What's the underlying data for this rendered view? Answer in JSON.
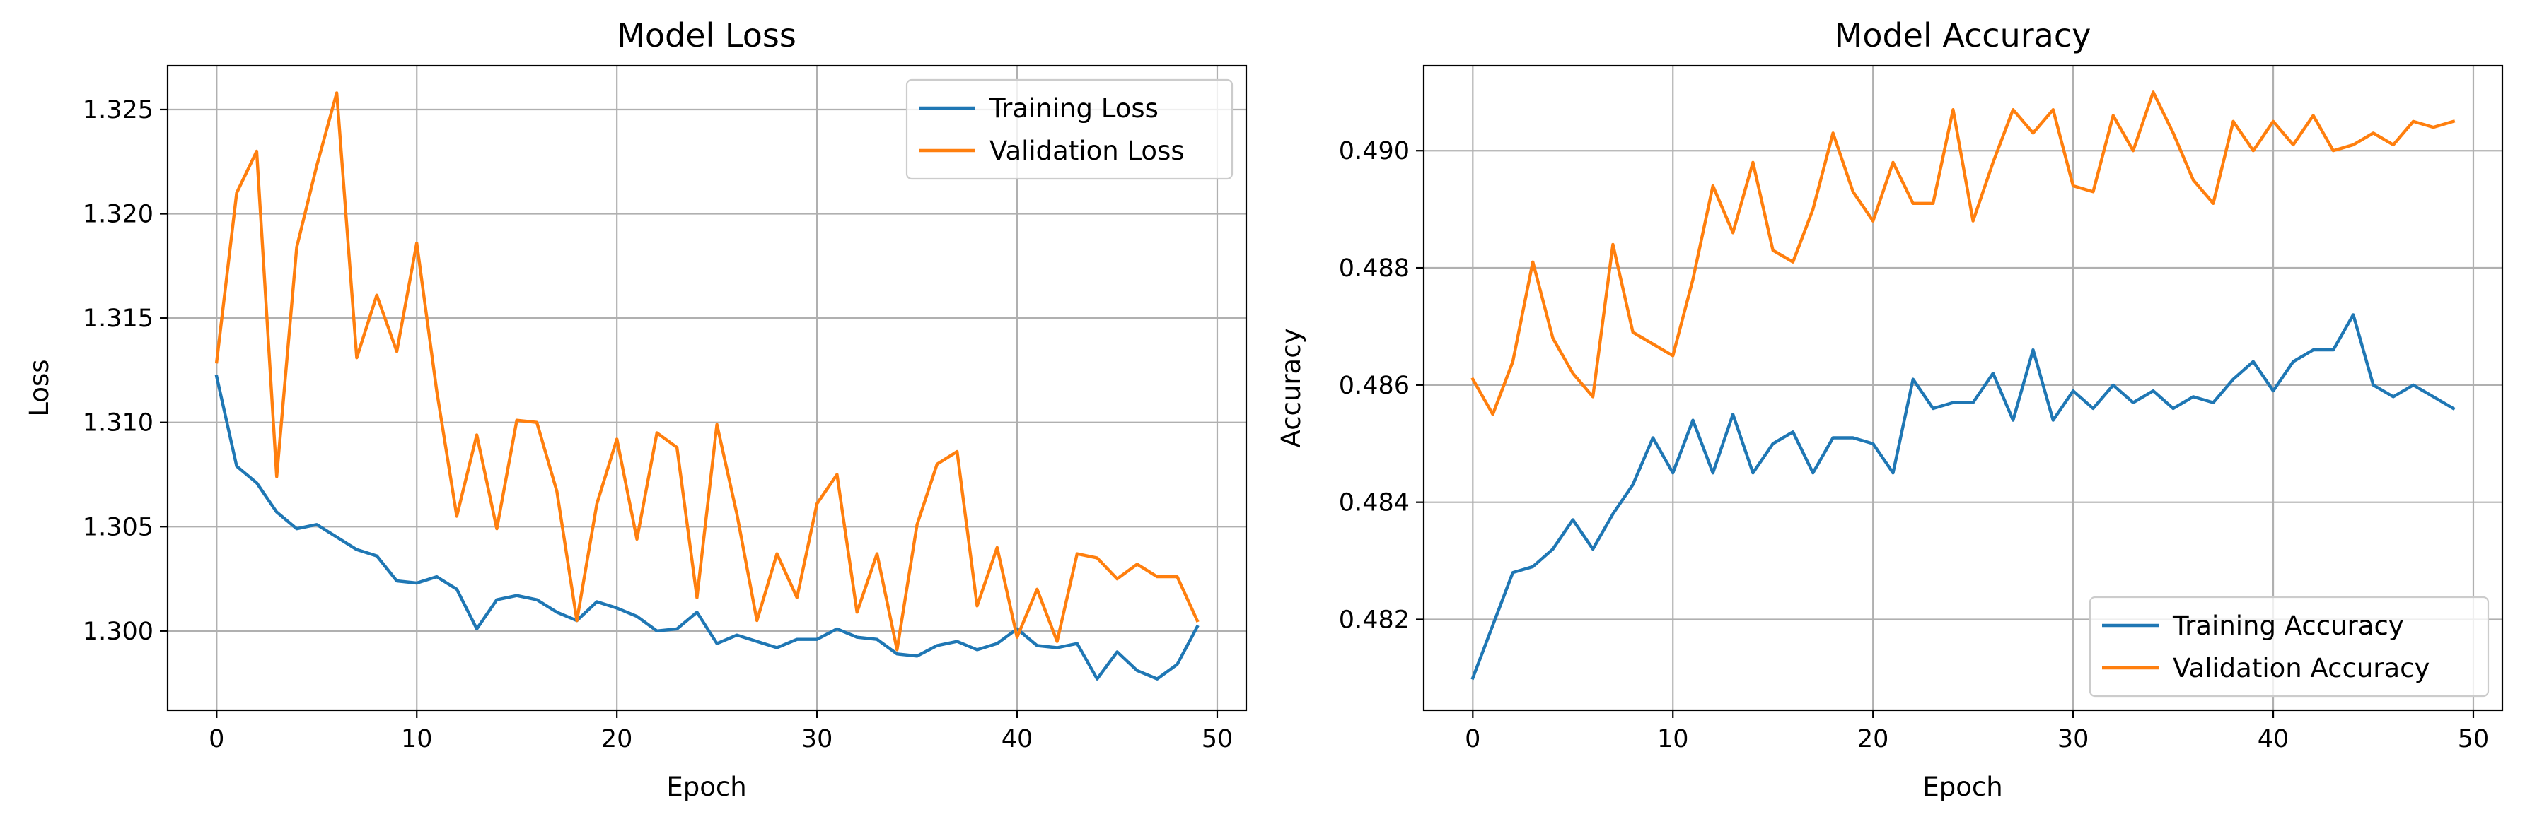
{
  "colors": {
    "training": "#1f77b4",
    "validation": "#ff7f0e"
  },
  "chart_data": [
    {
      "type": "line",
      "title": "Model Loss",
      "xlabel": "Epoch",
      "ylabel": "Loss",
      "xlim": [
        -2.45,
        51.45
      ],
      "ylim": [
        1.2962,
        1.3271
      ],
      "xticks": [
        0,
        10,
        20,
        30,
        40,
        50
      ],
      "xtick_labels": [
        "0",
        "10",
        "20",
        "30",
        "40",
        "50"
      ],
      "yticks": [
        1.3,
        1.305,
        1.31,
        1.315,
        1.32,
        1.325
      ],
      "ytick_labels": [
        "1.300",
        "1.305",
        "1.310",
        "1.315",
        "1.320",
        "1.325"
      ],
      "grid": true,
      "legend_position": "top-right",
      "x": [
        0,
        1,
        2,
        3,
        4,
        5,
        6,
        7,
        8,
        9,
        10,
        11,
        12,
        13,
        14,
        15,
        16,
        17,
        18,
        19,
        20,
        21,
        22,
        23,
        24,
        25,
        26,
        27,
        28,
        29,
        30,
        31,
        32,
        33,
        34,
        35,
        36,
        37,
        38,
        39,
        40,
        41,
        42,
        43,
        44,
        45,
        46,
        47,
        48,
        49
      ],
      "series": [
        {
          "name": "Training Loss",
          "color": "#1f77b4",
          "values": [
            1.3122,
            1.3079,
            1.3071,
            1.3057,
            1.3049,
            1.3051,
            1.3045,
            1.3039,
            1.3036,
            1.3024,
            1.3023,
            1.3026,
            1.302,
            1.3001,
            1.3015,
            1.3017,
            1.3015,
            1.3009,
            1.3005,
            1.3014,
            1.3011,
            1.3007,
            1.3,
            1.3001,
            1.3009,
            1.2994,
            1.2998,
            1.2995,
            1.2992,
            1.2996,
            1.2996,
            1.3001,
            1.2997,
            1.2996,
            1.2989,
            1.2988,
            1.2993,
            1.2995,
            1.2991,
            1.2994,
            1.3001,
            1.2993,
            1.2992,
            1.2994,
            1.2977,
            1.299,
            1.2981,
            1.2977,
            1.2984,
            1.3002
          ]
        },
        {
          "name": "Validation Loss",
          "color": "#ff7f0e",
          "values": [
            1.3129,
            1.321,
            1.323,
            1.3074,
            1.3184,
            1.3223,
            1.3258,
            1.3131,
            1.3161,
            1.3134,
            1.3186,
            1.3115,
            1.3055,
            1.3094,
            1.3049,
            1.3101,
            1.31,
            1.3067,
            1.3005,
            1.3061,
            1.3092,
            1.3044,
            1.3095,
            1.3088,
            1.3016,
            1.3099,
            1.3056,
            1.3005,
            1.3037,
            1.3016,
            1.3061,
            1.3075,
            1.3009,
            1.3037,
            1.2991,
            1.3051,
            1.308,
            1.3086,
            1.3012,
            1.304,
            1.2997,
            1.302,
            1.2995,
            1.3037,
            1.3035,
            1.3025,
            1.3032,
            1.3026,
            1.3026,
            1.3005
          ]
        }
      ]
    },
    {
      "type": "line",
      "title": "Model Accuracy",
      "xlabel": "Epoch",
      "ylabel": "Accuracy",
      "xlim": [
        -2.45,
        51.45
      ],
      "ylim": [
        0.48045,
        0.49145
      ],
      "xticks": [
        0,
        10,
        20,
        30,
        40,
        50
      ],
      "xtick_labels": [
        "0",
        "10",
        "20",
        "30",
        "40",
        "50"
      ],
      "yticks": [
        0.482,
        0.484,
        0.486,
        0.488,
        0.49
      ],
      "ytick_labels": [
        "0.482",
        "0.484",
        "0.486",
        "0.488",
        "0.490"
      ],
      "grid": true,
      "legend_position": "bottom-right",
      "x": [
        0,
        1,
        2,
        3,
        4,
        5,
        6,
        7,
        8,
        9,
        10,
        11,
        12,
        13,
        14,
        15,
        16,
        17,
        18,
        19,
        20,
        21,
        22,
        23,
        24,
        25,
        26,
        27,
        28,
        29,
        30,
        31,
        32,
        33,
        34,
        35,
        36,
        37,
        38,
        39,
        40,
        41,
        42,
        43,
        44,
        45,
        46,
        47,
        48,
        49
      ],
      "series": [
        {
          "name": "Training Accuracy",
          "color": "#1f77b4",
          "values": [
            0.481,
            0.4819,
            0.4828,
            0.4829,
            0.4832,
            0.4837,
            0.4832,
            0.4838,
            0.4843,
            0.4851,
            0.4845,
            0.4854,
            0.4845,
            0.4855,
            0.4845,
            0.485,
            0.4852,
            0.4845,
            0.4851,
            0.4851,
            0.485,
            0.4845,
            0.4861,
            0.4856,
            0.4857,
            0.4857,
            0.4862,
            0.4854,
            0.4866,
            0.4854,
            0.4859,
            0.4856,
            0.486,
            0.4857,
            0.4859,
            0.4856,
            0.4858,
            0.4857,
            0.4861,
            0.4864,
            0.4859,
            0.4864,
            0.4866,
            0.4866,
            0.4872,
            0.486,
            0.4858,
            0.486,
            0.4858,
            0.4856
          ]
        },
        {
          "name": "Validation Accuracy",
          "color": "#ff7f0e",
          "values": [
            0.4861,
            0.4855,
            0.4864,
            0.4881,
            0.4868,
            0.4862,
            0.4858,
            0.4884,
            0.4869,
            0.4867,
            0.4865,
            0.4878,
            0.4894,
            0.4886,
            0.4898,
            0.4883,
            0.4881,
            0.489,
            0.4903,
            0.4893,
            0.4888,
            0.4898,
            0.4891,
            0.4891,
            0.4907,
            0.4888,
            0.4898,
            0.4907,
            0.4903,
            0.4907,
            0.4894,
            0.4893,
            0.4906,
            0.49,
            0.491,
            0.4903,
            0.4895,
            0.4891,
            0.4905,
            0.49,
            0.4905,
            0.4901,
            0.4906,
            0.49,
            0.4901,
            0.4903,
            0.4901,
            0.4905,
            0.4904,
            0.4905
          ]
        }
      ]
    }
  ]
}
